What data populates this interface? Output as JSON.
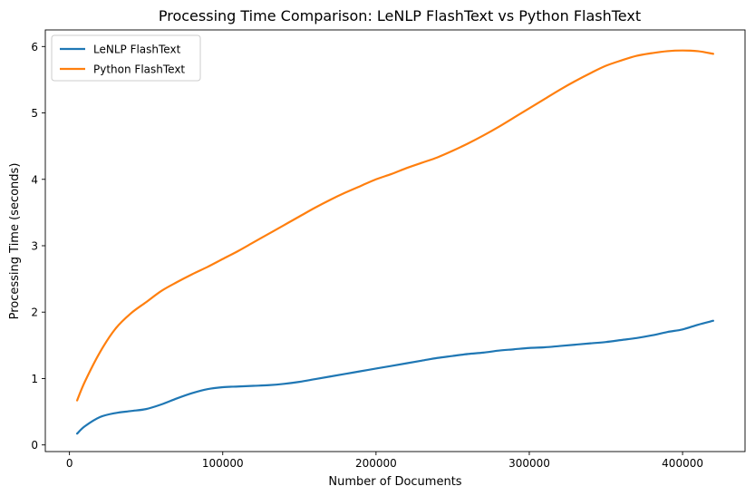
{
  "chart_data": {
    "type": "line",
    "title": "Processing Time Comparison: LeNLP FlashText vs Python FlashText",
    "xlabel": "Number of Documents",
    "ylabel": "Processing Time (seconds)",
    "xlim": [
      -15750,
      440750
    ],
    "ylim": [
      -0.1,
      6.25
    ],
    "xticks": [
      0,
      100000,
      200000,
      300000,
      400000
    ],
    "yticks": [
      0,
      1,
      2,
      3,
      4,
      5,
      6
    ],
    "grid": false,
    "legend_position": "top-left",
    "series": [
      {
        "name": "LeNLP FlashText",
        "color": "#1f77b4",
        "x": [
          5000,
          10000,
          20000,
          30000,
          40000,
          50000,
          60000,
          70000,
          80000,
          90000,
          100000,
          110000,
          120000,
          130000,
          140000,
          150000,
          160000,
          170000,
          180000,
          190000,
          200000,
          210000,
          220000,
          230000,
          240000,
          250000,
          260000,
          270000,
          280000,
          290000,
          300000,
          310000,
          320000,
          330000,
          340000,
          350000,
          360000,
          370000,
          380000,
          390000,
          400000,
          410000,
          420000
        ],
        "values": [
          0.17,
          0.28,
          0.42,
          0.48,
          0.51,
          0.54,
          0.61,
          0.7,
          0.78,
          0.84,
          0.87,
          0.88,
          0.89,
          0.9,
          0.92,
          0.95,
          0.99,
          1.03,
          1.07,
          1.11,
          1.15,
          1.19,
          1.23,
          1.27,
          1.31,
          1.34,
          1.37,
          1.39,
          1.42,
          1.44,
          1.46,
          1.47,
          1.49,
          1.51,
          1.53,
          1.55,
          1.58,
          1.61,
          1.65,
          1.7,
          1.74,
          1.81,
          1.87
        ]
      },
      {
        "name": "Python FlashText",
        "color": "#ff7f0e",
        "x": [
          5000,
          10000,
          20000,
          30000,
          40000,
          50000,
          60000,
          70000,
          80000,
          90000,
          100000,
          110000,
          120000,
          130000,
          140000,
          150000,
          160000,
          170000,
          180000,
          190000,
          200000,
          210000,
          220000,
          230000,
          240000,
          250000,
          260000,
          270000,
          280000,
          290000,
          300000,
          310000,
          320000,
          330000,
          340000,
          350000,
          360000,
          370000,
          380000,
          390000,
          400000,
          410000,
          420000
        ],
        "values": [
          0.67,
          0.95,
          1.4,
          1.75,
          1.98,
          2.15,
          2.32,
          2.45,
          2.57,
          2.68,
          2.8,
          2.92,
          3.05,
          3.18,
          3.31,
          3.44,
          3.57,
          3.69,
          3.8,
          3.9,
          4.0,
          4.08,
          4.17,
          4.25,
          4.33,
          4.43,
          4.54,
          4.66,
          4.79,
          4.93,
          5.07,
          5.21,
          5.35,
          5.48,
          5.6,
          5.71,
          5.79,
          5.86,
          5.9,
          5.93,
          5.94,
          5.93,
          5.89
        ]
      }
    ]
  }
}
